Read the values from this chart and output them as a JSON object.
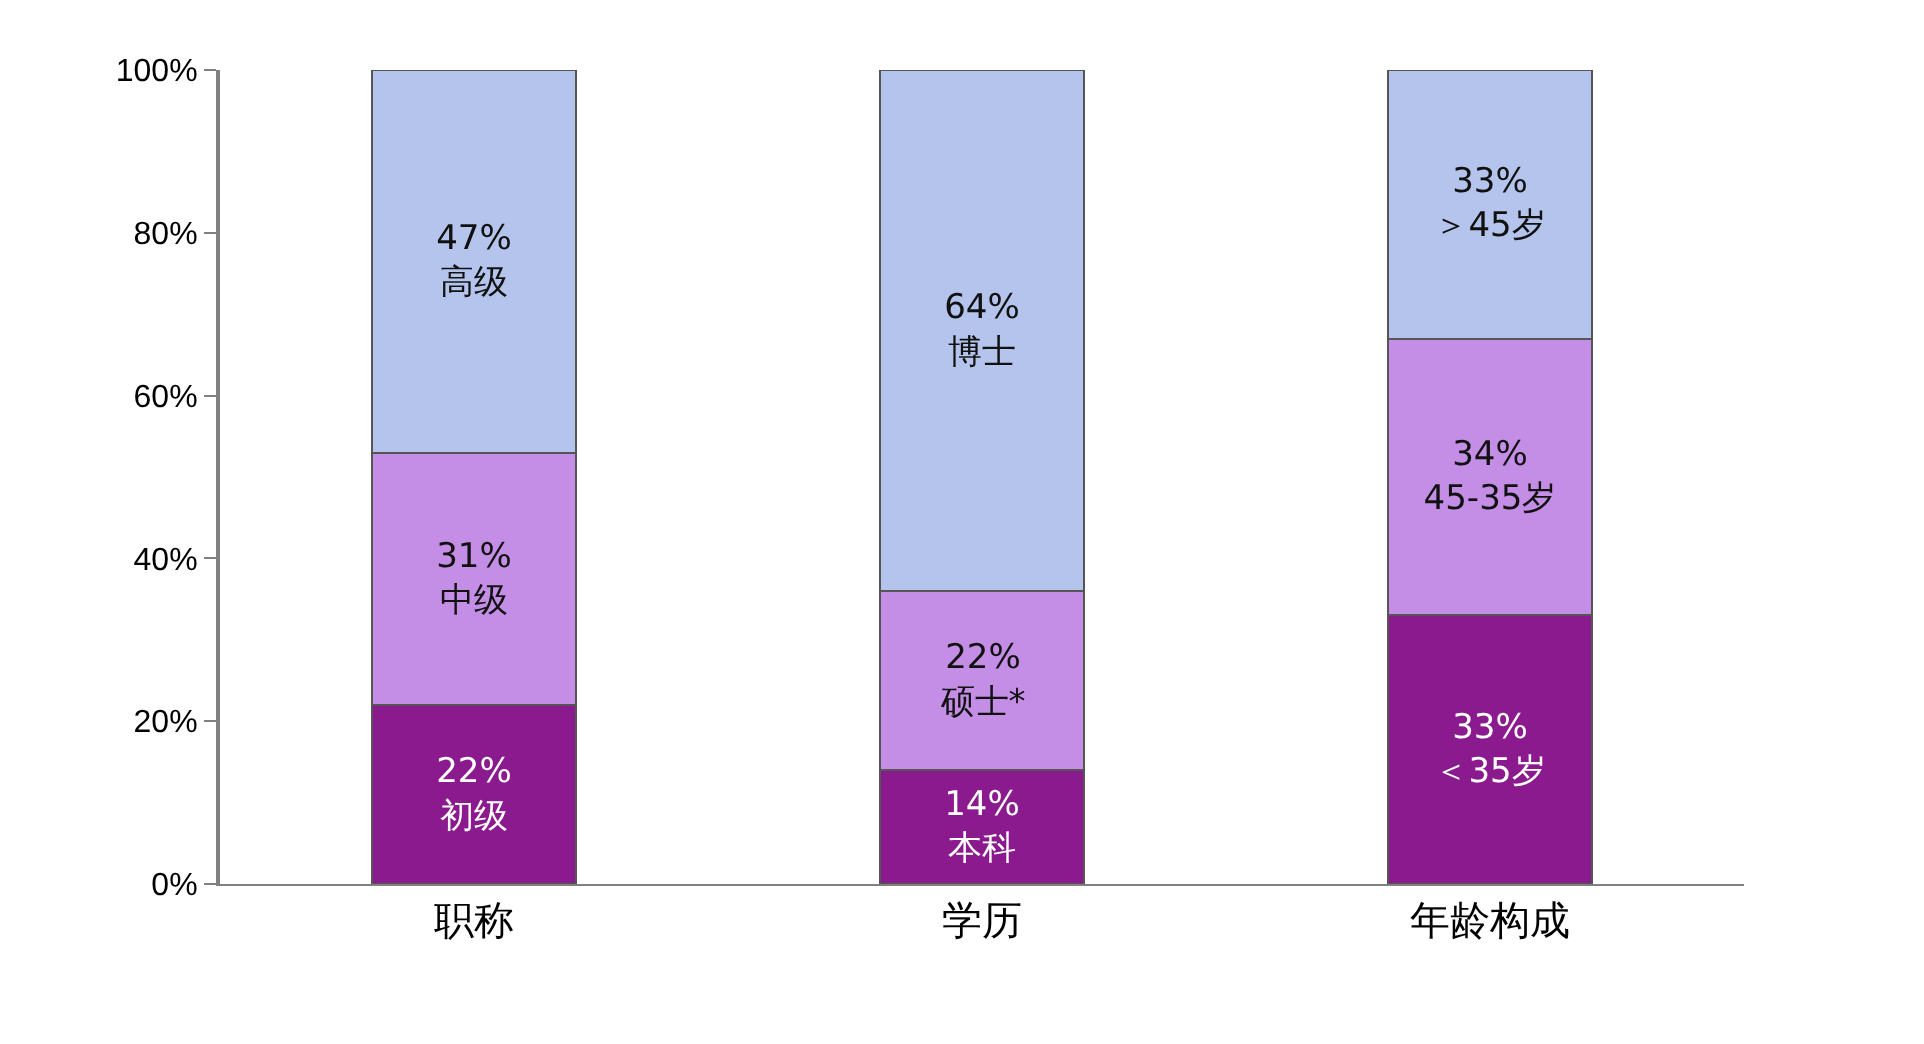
{
  "chart_data": {
    "type": "bar",
    "stacked": true,
    "categories": [
      "职称",
      "学历",
      "年龄构成"
    ],
    "series": [
      {
        "color": "#8a1a8e",
        "values": [
          22,
          14,
          33
        ],
        "value_labels": [
          "22%\n初级",
          "14%\n本科",
          "33%\n＜35岁"
        ]
      },
      {
        "color": "#c48ee6",
        "values": [
          31,
          22,
          34
        ],
        "value_labels": [
          "31%\n中级",
          "22%\n硕士*",
          "34%\n45-35岁"
        ]
      },
      {
        "color": "#b4c4ec",
        "values": [
          47,
          64,
          33
        ],
        "value_labels": [
          "47%\n高级",
          "64%\n博士",
          "33%\n＞45岁"
        ]
      }
    ],
    "ylim": [
      0,
      100
    ],
    "yticks": [
      {
        "value": 0,
        "label": "0%"
      },
      {
        "value": 20,
        "label": "20%"
      },
      {
        "value": 40,
        "label": "40%"
      },
      {
        "value": 60,
        "label": "60%"
      },
      {
        "value": 80,
        "label": "80%"
      },
      {
        "value": 100,
        "label": "100%"
      }
    ],
    "grid": false,
    "legend": false
  }
}
